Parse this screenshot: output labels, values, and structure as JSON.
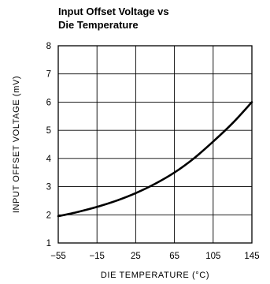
{
  "chart_data": {
    "type": "line",
    "title_lines": [
      "Input Offset Voltage vs",
      "Die Temperature"
    ],
    "xlabel": "DIE TEMPERATURE (°C)",
    "ylabel": "INPUT OFFSET VOLTAGE (mV)",
    "xlim": [
      -55,
      145
    ],
    "ylim": [
      1,
      8
    ],
    "x_ticks": [
      "-55",
      "-15",
      "25",
      "65",
      "105",
      "145"
    ],
    "y_ticks": [
      "1",
      "2",
      "3",
      "4",
      "5",
      "6",
      "7",
      "8"
    ],
    "grid": true,
    "series": [
      {
        "x": [
          -55,
          -35,
          -15,
          5,
          25,
          45,
          65,
          85,
          105,
          125,
          145
        ],
        "y": [
          1.95,
          2.1,
          2.28,
          2.5,
          2.77,
          3.1,
          3.5,
          4.0,
          4.6,
          5.25,
          6.0
        ]
      }
    ]
  }
}
